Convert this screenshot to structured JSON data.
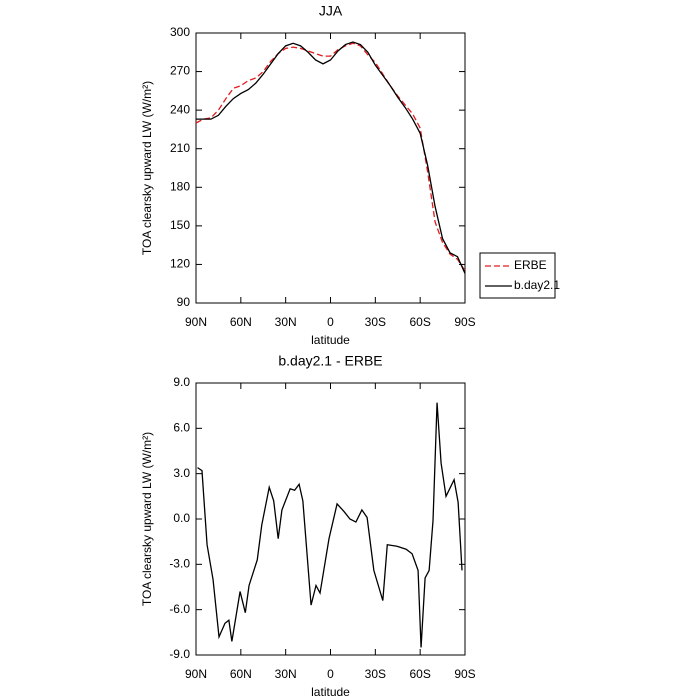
{
  "chart_data": [
    {
      "type": "line",
      "title": "JJA",
      "xlabel": "latitude",
      "ylabel": "TOA clearsky upward LW (W/m²)",
      "x": [
        90,
        85,
        80,
        75,
        70,
        65,
        60,
        55,
        50,
        45,
        40,
        35,
        30,
        25,
        20,
        15,
        10,
        5,
        0,
        -5,
        -10,
        -15,
        -20,
        -25,
        -30,
        -35,
        -40,
        -45,
        -50,
        -55,
        -60,
        -65,
        -70,
        -75,
        -80,
        -85,
        -90
      ],
      "series": [
        {
          "name": "ERBE",
          "color": "#e41a1c",
          "dash": true,
          "values": [
            230,
            233,
            234,
            240,
            249,
            257,
            259,
            263,
            265,
            270,
            278,
            284,
            288,
            289,
            288,
            286,
            284,
            282,
            282,
            287,
            290,
            292,
            290,
            283,
            277,
            268,
            259,
            251,
            244,
            237,
            226,
            192,
            153,
            137,
            128,
            124,
            115
          ]
        },
        {
          "name": "b.day2.1",
          "color": "#000000",
          "dash": false,
          "values": [
            233,
            233,
            233,
            236,
            243,
            249,
            253,
            256,
            261,
            268,
            276,
            284,
            290,
            292,
            290,
            285,
            279,
            276,
            279,
            286,
            291,
            293,
            291,
            285,
            275,
            267,
            259,
            250,
            242,
            233,
            222,
            197,
            165,
            140,
            129,
            126,
            113
          ]
        }
      ],
      "xlim": [
        90,
        -90
      ],
      "ylim": [
        90,
        300
      ],
      "xticks": [
        {
          "value": 90,
          "label": "90N"
        },
        {
          "value": 60,
          "label": "60N"
        },
        {
          "value": 30,
          "label": "30N"
        },
        0,
        {
          "value": -30,
          "label": "30S"
        },
        {
          "value": -60,
          "label": "60S"
        },
        {
          "value": -90,
          "label": "90S"
        }
      ],
      "yticks": [
        90,
        120,
        150,
        180,
        210,
        240,
        270,
        300
      ],
      "legend": "right"
    },
    {
      "type": "line",
      "title": "b.day2.1 - ERBE",
      "xlabel": "latitude",
      "ylabel": "TOA clearsky upward LW (W/m²)",
      "x": [
        89,
        86,
        82.6,
        78.6,
        74.6,
        70.6,
        68,
        66,
        60.5,
        57,
        54.5,
        49,
        46,
        41,
        38,
        35,
        32.5,
        27,
        24,
        21,
        18.5,
        13,
        9.7,
        7,
        1,
        -4.4,
        -9,
        -13,
        -17,
        -21,
        -24.5,
        -29,
        -35,
        -38,
        -44.5,
        -50.6,
        -54.6,
        -58.6,
        -60.6,
        -63.3,
        -66,
        -68.6,
        -71.3,
        -74,
        -77.3,
        -82.7,
        -85.4,
        -88
      ],
      "series": [
        {
          "name": "b.day2.1",
          "color": "#000000",
          "dash": false,
          "values": [
            3.4,
            3.2,
            -1.7,
            -4.0,
            -7.8,
            -6.9,
            -6.7,
            -8.1,
            -4.8,
            -6.2,
            -4.4,
            -2.7,
            -0.4,
            2.1,
            1.2,
            -1.3,
            0.6,
            2.0,
            1.9,
            2.3,
            1.2,
            -5.7,
            -4.4,
            -4.9,
            -1.3,
            1.0,
            0.5,
            0.0,
            -0.2,
            0.6,
            0.1,
            -3.4,
            -5.4,
            -1.7,
            -1.8,
            -2.0,
            -2.3,
            -3.4,
            -8.5,
            -3.9,
            -3.4,
            -0.1,
            7.7,
            3.7,
            1.5,
            2.6,
            1.1,
            -3.4
          ]
        }
      ],
      "xlim": [
        90,
        -90
      ],
      "ylim": [
        -9,
        9
      ],
      "xticks": [
        {
          "value": 90,
          "label": "90N"
        },
        {
          "value": 60,
          "label": "60N"
        },
        {
          "value": 30,
          "label": "30N"
        },
        0,
        {
          "value": -30,
          "label": "30S"
        },
        {
          "value": -60,
          "label": "60S"
        },
        {
          "value": -90,
          "label": "90S"
        }
      ],
      "yticks": [
        {
          "value": -9,
          "label": "-9.0"
        },
        {
          "value": -6,
          "label": "-6.0"
        },
        {
          "value": -3,
          "label": "-3.0"
        },
        {
          "value": 0,
          "label": "0.0"
        },
        {
          "value": 3,
          "label": "3.0"
        },
        {
          "value": 6,
          "label": "6.0"
        },
        {
          "value": 9,
          "label": "9.0"
        }
      ]
    }
  ]
}
